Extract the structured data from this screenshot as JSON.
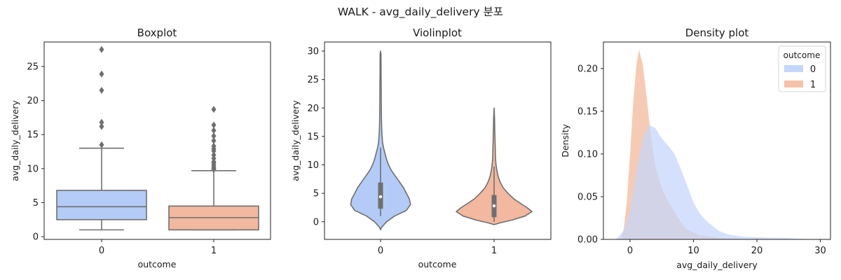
{
  "suptitle": "WALK - avg_daily_delivery 분포",
  "colors": {
    "group0": "#b3cbf6",
    "group1": "#f2b8a0",
    "line": "#6f6f6f",
    "kde0_fill": "#c5d6fb",
    "kde1_fill": "#f5c2a9"
  },
  "chart_data": [
    {
      "type": "box",
      "title": "Boxplot",
      "xlabel": "outcome",
      "ylabel": "avg_daily_delivery",
      "categories": [
        "0",
        "1"
      ],
      "ylim": [
        -0.4,
        28.6
      ],
      "yticks": [
        0,
        5,
        10,
        15,
        20,
        25
      ],
      "boxes": [
        {
          "category": "0",
          "min": 1.0,
          "q1": 2.5,
          "median": 4.4,
          "q3": 6.8,
          "max": 13.0,
          "outliers": [
            13.5,
            16.2,
            16.8,
            21.5,
            23.9,
            27.5
          ]
        },
        {
          "category": "1",
          "min": 1.0,
          "q1": 1.0,
          "median": 2.8,
          "q3": 4.5,
          "max": 9.7,
          "outliers": [
            9.9,
            10.0,
            10.2,
            10.5,
            10.8,
            11.0,
            11.5,
            12.0,
            12.6,
            12.9,
            13.3,
            14.1,
            14.8,
            15.6,
            16.4,
            18.7
          ]
        }
      ]
    },
    {
      "type": "violin",
      "title": "Violinplot",
      "xlabel": "outcome",
      "ylabel": "avg_daily_delivery",
      "categories": [
        "0",
        "1"
      ],
      "ylim": [
        -3.1,
        31.6
      ],
      "yticks": [
        0,
        5,
        10,
        15,
        20,
        25,
        30
      ],
      "violins": [
        {
          "category": "0",
          "median": 4.4,
          "q1": 2.3,
          "q3": 6.9,
          "whisker_low": 1.0,
          "whisker_high": 13.0,
          "profile": [
            [
              -1.4,
              0.0
            ],
            [
              -1.0,
              0.01
            ],
            [
              0.0,
              0.06
            ],
            [
              1.0,
              0.14
            ],
            [
              2.0,
              0.26
            ],
            [
              3.0,
              0.3
            ],
            [
              4.0,
              0.29
            ],
            [
              5.0,
              0.26
            ],
            [
              6.0,
              0.23
            ],
            [
              7.0,
              0.19
            ],
            [
              8.0,
              0.15
            ],
            [
              9.0,
              0.11
            ],
            [
              10.0,
              0.08
            ],
            [
              11.0,
              0.06
            ],
            [
              12.0,
              0.045
            ],
            [
              13.0,
              0.03
            ],
            [
              14.0,
              0.02
            ],
            [
              16.0,
              0.012
            ],
            [
              18.0,
              0.009
            ],
            [
              20.0,
              0.008
            ],
            [
              22.0,
              0.007
            ],
            [
              24.0,
              0.006
            ],
            [
              26.0,
              0.005
            ],
            [
              28.0,
              0.005
            ],
            [
              29.5,
              0.004
            ],
            [
              30.0,
              0.0
            ]
          ]
        },
        {
          "category": "1",
          "median": 2.8,
          "q1": 0.8,
          "q3": 4.7,
          "whisker_low": 0.0,
          "whisker_high": 9.7,
          "profile": [
            [
              -0.5,
              0.0
            ],
            [
              -0.2,
              0.06
            ],
            [
              0.3,
              0.18
            ],
            [
              1.0,
              0.31
            ],
            [
              1.8,
              0.38
            ],
            [
              2.5,
              0.33
            ],
            [
              3.3,
              0.26
            ],
            [
              4.0,
              0.2
            ],
            [
              5.0,
              0.14
            ],
            [
              6.0,
              0.09
            ],
            [
              7.0,
              0.06
            ],
            [
              8.0,
              0.04
            ],
            [
              9.0,
              0.028
            ],
            [
              10.0,
              0.02
            ],
            [
              11.0,
              0.015
            ],
            [
              12.0,
              0.013
            ],
            [
              13.0,
              0.012
            ],
            [
              14.0,
              0.01
            ],
            [
              16.0,
              0.007
            ],
            [
              18.0,
              0.005
            ],
            [
              20.0,
              0.0
            ]
          ]
        }
      ]
    },
    {
      "type": "area",
      "title": "Density plot",
      "xlabel": "avg_daily_delivery",
      "ylabel": "Density",
      "xlim": [
        -4.2,
        31.6
      ],
      "ylim": [
        0,
        0.231
      ],
      "xticks": [
        0,
        10,
        20,
        30
      ],
      "yticks": [
        0.0,
        0.05,
        0.1,
        0.15,
        0.2
      ],
      "legend": {
        "title": "outcome",
        "position": "top-right"
      },
      "series": [
        {
          "name": "0",
          "points": [
            [
              -2.5,
              0.0
            ],
            [
              -2.0,
              0.002
            ],
            [
              -1.0,
              0.01
            ],
            [
              0.0,
              0.035
            ],
            [
              1.0,
              0.08
            ],
            [
              2.0,
              0.118
            ],
            [
              3.0,
              0.134
            ],
            [
              4.0,
              0.13
            ],
            [
              5.0,
              0.118
            ],
            [
              6.0,
              0.11
            ],
            [
              7.0,
              0.1
            ],
            [
              8.0,
              0.083
            ],
            [
              9.0,
              0.063
            ],
            [
              10.0,
              0.043
            ],
            [
              11.0,
              0.03
            ],
            [
              12.0,
              0.022
            ],
            [
              13.0,
              0.016
            ],
            [
              14.0,
              0.01
            ],
            [
              15.0,
              0.007
            ],
            [
              16.0,
              0.005
            ],
            [
              18.0,
              0.003
            ],
            [
              20.0,
              0.0025
            ],
            [
              22.0,
              0.002
            ],
            [
              24.0,
              0.002
            ],
            [
              26.0,
              0.001
            ],
            [
              28.0,
              0.0005
            ],
            [
              30.0,
              0.0
            ]
          ]
        },
        {
          "name": "1",
          "points": [
            [
              -1.5,
              0.0
            ],
            [
              -1.0,
              0.012
            ],
            [
              -0.5,
              0.045
            ],
            [
              0.0,
              0.1
            ],
            [
              0.5,
              0.16
            ],
            [
              1.0,
              0.205
            ],
            [
              1.4,
              0.222
            ],
            [
              2.0,
              0.205
            ],
            [
              2.5,
              0.175
            ],
            [
              3.0,
              0.14
            ],
            [
              3.5,
              0.11
            ],
            [
              4.0,
              0.085
            ],
            [
              5.0,
              0.06
            ],
            [
              6.0,
              0.045
            ],
            [
              7.0,
              0.032
            ],
            [
              8.0,
              0.02
            ],
            [
              9.0,
              0.012
            ],
            [
              10.0,
              0.008
            ],
            [
              11.0,
              0.005
            ],
            [
              12.0,
              0.004
            ],
            [
              13.0,
              0.003
            ],
            [
              14.0,
              0.002
            ],
            [
              16.0,
              0.001
            ],
            [
              18.0,
              0.0005
            ],
            [
              20.0,
              0.0
            ]
          ]
        }
      ]
    }
  ]
}
